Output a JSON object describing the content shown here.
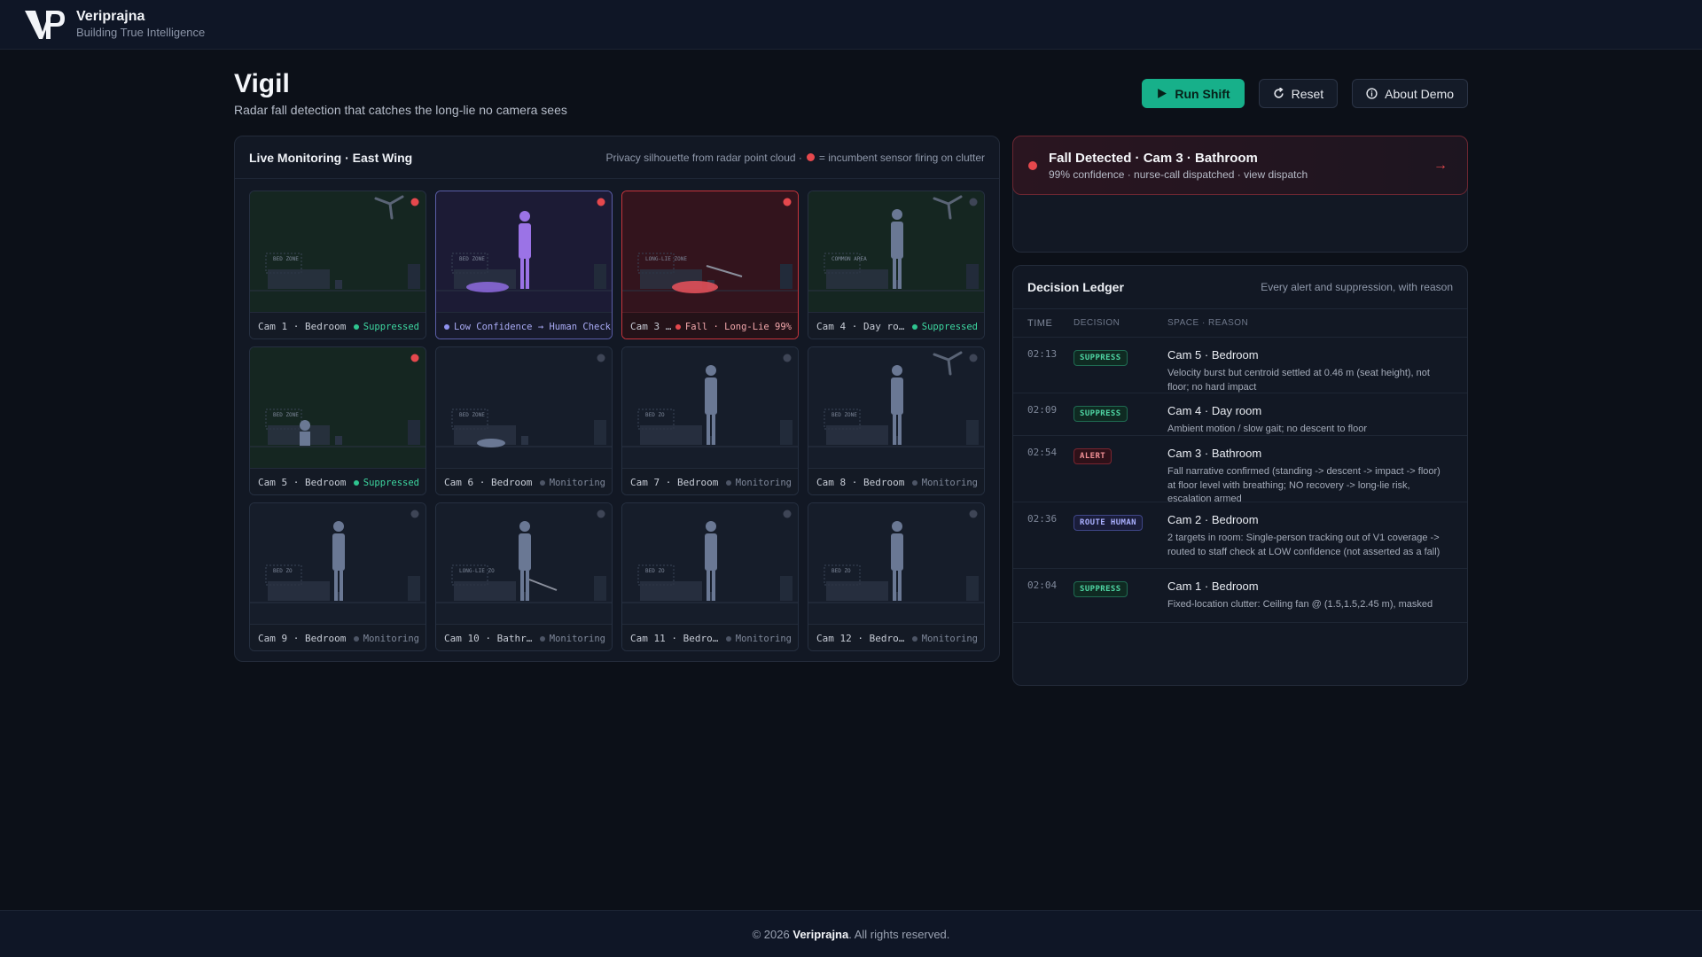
{
  "brand": {
    "name": "Veriprajna",
    "tagline": "Building True Intelligence"
  },
  "header": {
    "title": "Vigil",
    "subtitle": "Radar fall detection that catches the long-lie no camera sees"
  },
  "actions": {
    "run": "Run Shift",
    "reset": "Reset",
    "about": "About Demo"
  },
  "monitor": {
    "title": "Live Monitoring · East Wing",
    "note_pre": "Privacy silhouette from radar point cloud ·",
    "note_post": "= incumbent sensor firing on clutter"
  },
  "cameras": [
    {
      "label": "Cam 1 · Bedroom",
      "status": "Suppressed",
      "kind": "suppressed",
      "zone": "BED ZONE",
      "flag": "red"
    },
    {
      "label": "",
      "status": "Low Confidence → Human Check",
      "kind": "conf",
      "zone": "BED ZONE",
      "flag": "red"
    },
    {
      "label": "Cam 3 …",
      "status": "Fall · Long-Lie 99%",
      "kind": "fall",
      "zone": "LONG-LIE ZONE",
      "flag": "red"
    },
    {
      "label": "Cam 4 · Day ro…",
      "status": "Suppressed",
      "kind": "suppressed",
      "zone": "COMMON AREA",
      "flag": "grey"
    },
    {
      "label": "Cam 5 · Bedroom",
      "status": "Suppressed",
      "kind": "suppressed",
      "zone": "BED ZONE",
      "flag": "red"
    },
    {
      "label": "Cam 6 · Bedroom",
      "status": "Monitoring",
      "kind": "monitoring",
      "zone": "BED ZONE",
      "flag": "grey"
    },
    {
      "label": "Cam 7 · Bedroom",
      "status": "Monitoring",
      "kind": "monitoring",
      "zone": "BED ZO",
      "flag": "grey"
    },
    {
      "label": "Cam 8 · Bedroom",
      "status": "Monitoring",
      "kind": "monitoring",
      "zone": "BED ZONE",
      "flag": "grey"
    },
    {
      "label": "Cam 9 · Bedroom",
      "status": "Monitoring",
      "kind": "monitoring",
      "zone": "BED ZO",
      "flag": "grey"
    },
    {
      "label": "Cam 10 · Bathr…",
      "status": "Monitoring",
      "kind": "monitoring",
      "zone": "LONG-LIE ZO",
      "flag": "grey"
    },
    {
      "label": "Cam 11 · Bedro…",
      "status": "Monitoring",
      "kind": "monitoring",
      "zone": "BED ZO",
      "flag": "grey"
    },
    {
      "label": "Cam 12 · Bedro…",
      "status": "Monitoring",
      "kind": "monitoring",
      "zone": "BED ZO",
      "flag": "grey"
    }
  ],
  "alert": {
    "title": "Fall Detected · Cam 3 · Bathroom",
    "subtitle": "99% confidence · nurse-call dispatched · view dispatch"
  },
  "ledger": {
    "title": "Decision Ledger",
    "note": "Every alert and suppression, with reason",
    "columns": [
      "TIME",
      "DECISION",
      "SPACE · REASON"
    ],
    "rows": [
      {
        "time": "02:13",
        "decision": "SUPPRESS",
        "space": "Cam 5 · Bedroom",
        "reason": "Velocity burst but centroid settled at 0.46 m (seat height), not floor; no hard impact"
      },
      {
        "time": "02:09",
        "decision": "SUPPRESS",
        "space": "Cam 4 · Day room",
        "reason": "Ambient motion / slow gait; no descent to floor"
      },
      {
        "time": "02:54",
        "decision": "ALERT",
        "space": "Cam 3 · Bathroom",
        "reason": "Fall narrative confirmed (standing -> descent -> impact -> floor) at floor level with breathing; NO recovery -> long-lie risk, escalation armed"
      },
      {
        "time": "02:36",
        "decision": "ROUTE HUMAN",
        "space": "Cam 2 · Bedroom",
        "reason": "2 targets in room: Single-person tracking out of V1 coverage -> routed to staff check at LOW confidence (not asserted as a fall)"
      },
      {
        "time": "02:04",
        "decision": "SUPPRESS",
        "space": "Cam 1 · Bedroom",
        "reason": "Fixed-location clutter: Ceiling fan @ (1.5,1.5,2.45 m), masked"
      }
    ]
  },
  "footer": {
    "pre": "© 2026",
    "brand": "Veriprajna",
    "post": ". All rights reserved."
  }
}
